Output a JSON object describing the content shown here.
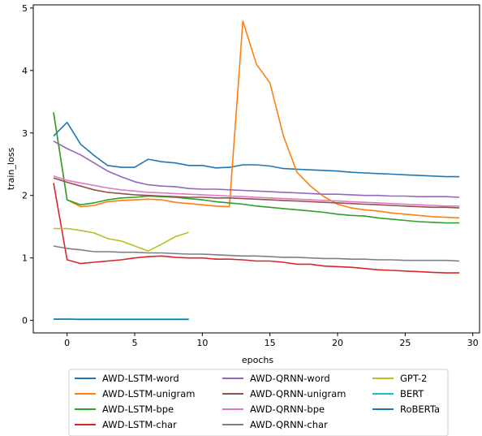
{
  "chart_data": {
    "type": "line",
    "title": "",
    "xlabel": "epochs",
    "ylabel": "train_loss",
    "xlim": [
      -2.5,
      30.5
    ],
    "ylim": [
      -0.2,
      5.05
    ],
    "x_ticks": [
      0,
      5,
      10,
      15,
      20,
      25,
      30
    ],
    "x_tick_labels": [
      "0",
      "5",
      "10",
      "15",
      "20",
      "25",
      "30"
    ],
    "y_ticks": [
      0,
      1,
      2,
      3,
      4,
      5
    ],
    "y_tick_labels": [
      "0",
      "1",
      "2",
      "3",
      "4",
      "5"
    ],
    "grid": false,
    "legend_placement": "below",
    "legend_columns": 3,
    "series": [
      {
        "name": "AWD-LSTM-word",
        "color": "#1f77b4",
        "x": [
          -1,
          0,
          1,
          2,
          3,
          4,
          5,
          6,
          7,
          8,
          9,
          10,
          11,
          12,
          13,
          14,
          15,
          16,
          17,
          18,
          19,
          20,
          21,
          22,
          23,
          24,
          25,
          26,
          27,
          28,
          29
        ],
        "y": [
          2.95,
          3.17,
          2.82,
          2.64,
          2.48,
          2.45,
          2.45,
          2.58,
          2.54,
          2.52,
          2.48,
          2.48,
          2.44,
          2.45,
          2.49,
          2.49,
          2.47,
          2.43,
          2.42,
          2.41,
          2.4,
          2.39,
          2.37,
          2.36,
          2.35,
          2.34,
          2.33,
          2.32,
          2.31,
          2.3,
          2.3
        ]
      },
      {
        "name": "AWD-LSTM-unigram",
        "color": "#ff7f0e",
        "x": [
          -1,
          0,
          1,
          2,
          3,
          4,
          5,
          6,
          7,
          8,
          9,
          10,
          11,
          12,
          13,
          14,
          15,
          16,
          17,
          18,
          19,
          20,
          21,
          22,
          23,
          24,
          25,
          26,
          27,
          28,
          29
        ],
        "y": [
          3.33,
          1.93,
          1.82,
          1.84,
          1.9,
          1.92,
          1.93,
          1.94,
          1.93,
          1.89,
          1.87,
          1.85,
          1.83,
          1.82,
          4.79,
          4.1,
          3.8,
          2.95,
          2.37,
          2.15,
          1.98,
          1.86,
          1.8,
          1.77,
          1.75,
          1.72,
          1.7,
          1.68,
          1.66,
          1.65,
          1.64
        ]
      },
      {
        "name": "AWD-LSTM-bpe",
        "color": "#2ca02c",
        "x": [
          -1,
          0,
          1,
          2,
          3,
          4,
          5,
          6,
          7,
          8,
          9,
          10,
          11,
          12,
          13,
          14,
          15,
          16,
          17,
          18,
          19,
          20,
          21,
          22,
          23,
          24,
          25,
          26,
          27,
          28,
          29
        ],
        "y": [
          3.33,
          1.93,
          1.85,
          1.88,
          1.93,
          1.96,
          1.97,
          1.99,
          1.98,
          1.97,
          1.95,
          1.93,
          1.9,
          1.88,
          1.86,
          1.83,
          1.81,
          1.79,
          1.77,
          1.75,
          1.73,
          1.7,
          1.68,
          1.67,
          1.64,
          1.62,
          1.6,
          1.58,
          1.57,
          1.56,
          1.56
        ]
      },
      {
        "name": "AWD-LSTM-char",
        "color": "#d62728",
        "x": [
          -1,
          0,
          1,
          2,
          3,
          4,
          5,
          6,
          7,
          8,
          9,
          10,
          11,
          12,
          13,
          14,
          15,
          16,
          17,
          18,
          19,
          20,
          21,
          22,
          23,
          24,
          25,
          26,
          27,
          28,
          29
        ],
        "y": [
          2.2,
          0.97,
          0.91,
          0.93,
          0.95,
          0.97,
          1.0,
          1.02,
          1.03,
          1.01,
          1.0,
          1.0,
          0.98,
          0.98,
          0.97,
          0.95,
          0.95,
          0.93,
          0.9,
          0.9,
          0.87,
          0.86,
          0.85,
          0.83,
          0.81,
          0.8,
          0.79,
          0.78,
          0.77,
          0.76,
          0.76
        ]
      },
      {
        "name": "AWD-QRNN-word",
        "color": "#9467bd",
        "x": [
          -1,
          0,
          1,
          2,
          3,
          4,
          5,
          6,
          7,
          8,
          9,
          10,
          11,
          12,
          13,
          14,
          15,
          16,
          17,
          18,
          19,
          20,
          21,
          22,
          23,
          24,
          25,
          26,
          27,
          28,
          29
        ],
        "y": [
          2.87,
          2.75,
          2.65,
          2.52,
          2.39,
          2.3,
          2.22,
          2.17,
          2.15,
          2.14,
          2.11,
          2.1,
          2.1,
          2.09,
          2.08,
          2.07,
          2.06,
          2.05,
          2.04,
          2.03,
          2.02,
          2.02,
          2.01,
          2.0,
          2.0,
          1.99,
          1.99,
          1.98,
          1.98,
          1.98,
          1.97
        ]
      },
      {
        "name": "AWD-QRNN-unigram",
        "color": "#8c564b",
        "x": [
          -1,
          0,
          1,
          2,
          3,
          4,
          5,
          6,
          7,
          8,
          9,
          10,
          11,
          12,
          13,
          14,
          15,
          16,
          17,
          18,
          19,
          20,
          21,
          22,
          23,
          24,
          25,
          26,
          27,
          28,
          29
        ],
        "y": [
          2.28,
          2.21,
          2.15,
          2.09,
          2.05,
          2.03,
          2.01,
          2.0,
          1.99,
          1.98,
          1.97,
          1.97,
          1.96,
          1.96,
          1.95,
          1.94,
          1.93,
          1.92,
          1.91,
          1.9,
          1.89,
          1.88,
          1.87,
          1.86,
          1.85,
          1.84,
          1.83,
          1.82,
          1.81,
          1.81,
          1.8
        ]
      },
      {
        "name": "AWD-QRNN-bpe",
        "color": "#e377c2",
        "x": [
          -1,
          0,
          1,
          2,
          3,
          4,
          5,
          6,
          7,
          8,
          9,
          10,
          11,
          12,
          13,
          14,
          15,
          16,
          17,
          18,
          19,
          20,
          21,
          22,
          23,
          24,
          25,
          26,
          27,
          28,
          29
        ],
        "y": [
          2.31,
          2.24,
          2.2,
          2.16,
          2.12,
          2.09,
          2.07,
          2.05,
          2.04,
          2.03,
          2.02,
          2.01,
          2.0,
          1.99,
          1.98,
          1.97,
          1.96,
          1.95,
          1.94,
          1.93,
          1.92,
          1.91,
          1.9,
          1.89,
          1.88,
          1.87,
          1.86,
          1.85,
          1.84,
          1.83,
          1.83
        ]
      },
      {
        "name": "AWD-QRNN-char",
        "color": "#7f7f7f",
        "x": [
          -1,
          0,
          1,
          2,
          3,
          4,
          5,
          6,
          7,
          8,
          9,
          10,
          11,
          12,
          13,
          14,
          15,
          16,
          17,
          18,
          19,
          20,
          21,
          22,
          23,
          24,
          25,
          26,
          27,
          28,
          29
        ],
        "y": [
          1.19,
          1.15,
          1.13,
          1.1,
          1.1,
          1.09,
          1.09,
          1.08,
          1.08,
          1.07,
          1.06,
          1.06,
          1.05,
          1.04,
          1.03,
          1.03,
          1.02,
          1.01,
          1.01,
          1.0,
          0.99,
          0.99,
          0.98,
          0.98,
          0.97,
          0.97,
          0.96,
          0.96,
          0.96,
          0.96,
          0.95
        ]
      },
      {
        "name": "GPT-2",
        "color": "#bcbd22",
        "x": [
          -1,
          0,
          1,
          2,
          3,
          4,
          5,
          6,
          7,
          8,
          9
        ],
        "y": [
          1.47,
          1.47,
          1.44,
          1.4,
          1.31,
          1.27,
          1.19,
          1.11,
          1.22,
          1.34,
          1.41
        ]
      },
      {
        "name": "BERT",
        "color": "#17becf",
        "x": [
          -1,
          0,
          1,
          2,
          3,
          4,
          5,
          6,
          7,
          8,
          9
        ],
        "y": [
          0.02,
          0.02,
          0.02,
          0.02,
          0.02,
          0.02,
          0.02,
          0.02,
          0.02,
          0.02,
          0.02
        ]
      },
      {
        "name": "RoBERTa",
        "color": "#1f77b4",
        "x": [
          -1,
          0,
          1,
          2,
          3,
          4,
          5,
          6,
          7,
          8,
          9
        ],
        "y": [
          0.02,
          0.02,
          0.015,
          0.015,
          0.015,
          0.015,
          0.015,
          0.015,
          0.015,
          0.015,
          0.015
        ]
      }
    ]
  }
}
